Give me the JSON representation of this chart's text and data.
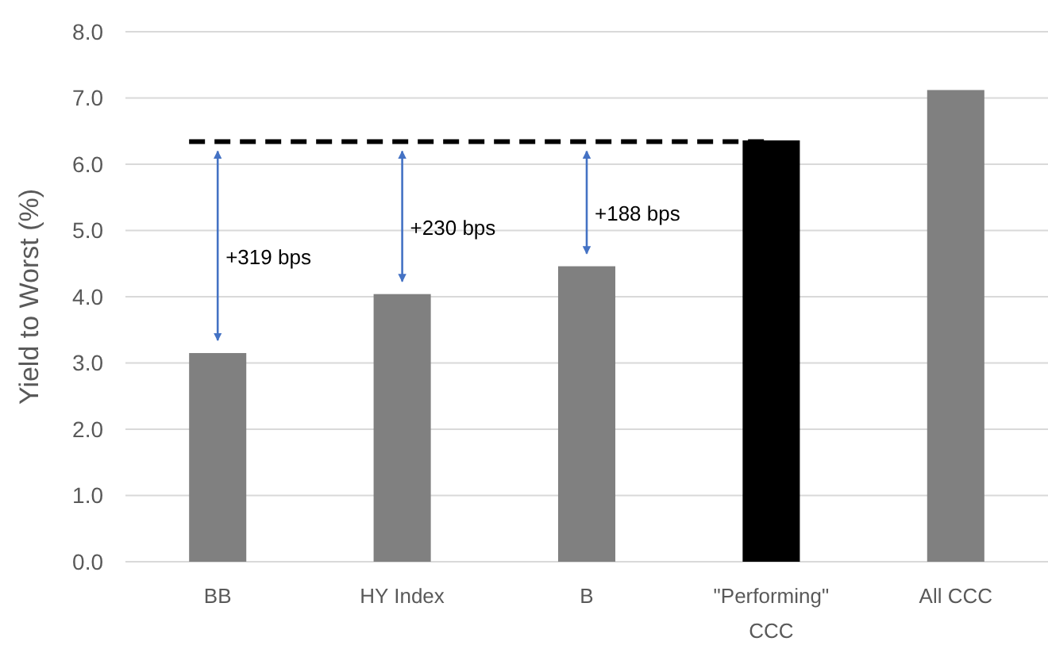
{
  "chart_data": {
    "type": "bar",
    "ylabel": "Yield to Worst (%)",
    "categories": [
      "BB",
      "HY Index",
      "B",
      "\"Performing\"\nCCC",
      "All CCC"
    ],
    "values": [
      3.15,
      4.04,
      4.46,
      6.36,
      7.12
    ],
    "colors": [
      "#808080",
      "#808080",
      "#808080",
      "#000000",
      "#808080"
    ],
    "ylim": [
      0,
      8
    ],
    "yticks": [
      {
        "value": 0,
        "label": "0.0"
      },
      {
        "value": 1,
        "label": "1.0"
      },
      {
        "value": 2,
        "label": "2.0"
      },
      {
        "value": 3,
        "label": "3.0"
      },
      {
        "value": 4,
        "label": "4.0"
      },
      {
        "value": 5,
        "label": "5.0"
      },
      {
        "value": 6,
        "label": "6.0"
      },
      {
        "value": 7,
        "label": "7.0"
      },
      {
        "value": 8,
        "label": "8.0"
      }
    ],
    "grid": "y",
    "ref_lines": [
      {
        "axis": "y",
        "value": 6.34,
        "color": "#000000",
        "line_style": "dashed"
      }
    ],
    "annotations": [
      "+319 bps",
      "+230 bps",
      "+188 bps"
    ]
  }
}
